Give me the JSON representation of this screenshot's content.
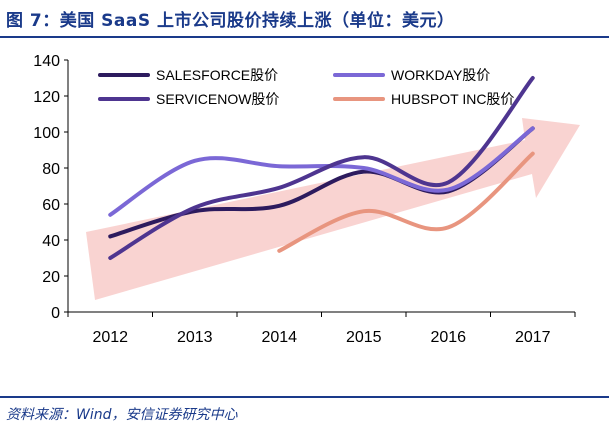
{
  "title": "图 7：美国 SaaS 上市公司股价持续上涨（单位：美元）",
  "source": "资料来源：Wind，安信证券研究中心",
  "colors": {
    "title": "#1a3a8a",
    "arrow": "#f7c4c2"
  },
  "chart_data": {
    "type": "line",
    "x": [
      "2012",
      "2013",
      "2014",
      "2015",
      "2016",
      "2017"
    ],
    "ylim": [
      0,
      140
    ],
    "yticks": [
      0,
      20,
      40,
      60,
      80,
      100,
      120,
      140
    ],
    "legend_position": "top",
    "series": [
      {
        "name": "SALESFORCE股价",
        "color": "#2d1b5e",
        "values": [
          42,
          56,
          59,
          78,
          67,
          102
        ]
      },
      {
        "name": "WORKDAY股价",
        "color": "#7b68d6",
        "values": [
          54,
          84,
          81,
          80,
          68,
          102
        ]
      },
      {
        "name": "SERVICENOW股价",
        "color": "#4e3590",
        "values": [
          30,
          58,
          69,
          86,
          72,
          130
        ]
      },
      {
        "name": "HUBSPOT INC股价",
        "color": "#e8957f",
        "values": [
          null,
          null,
          34,
          56,
          47,
          88
        ]
      }
    ]
  }
}
